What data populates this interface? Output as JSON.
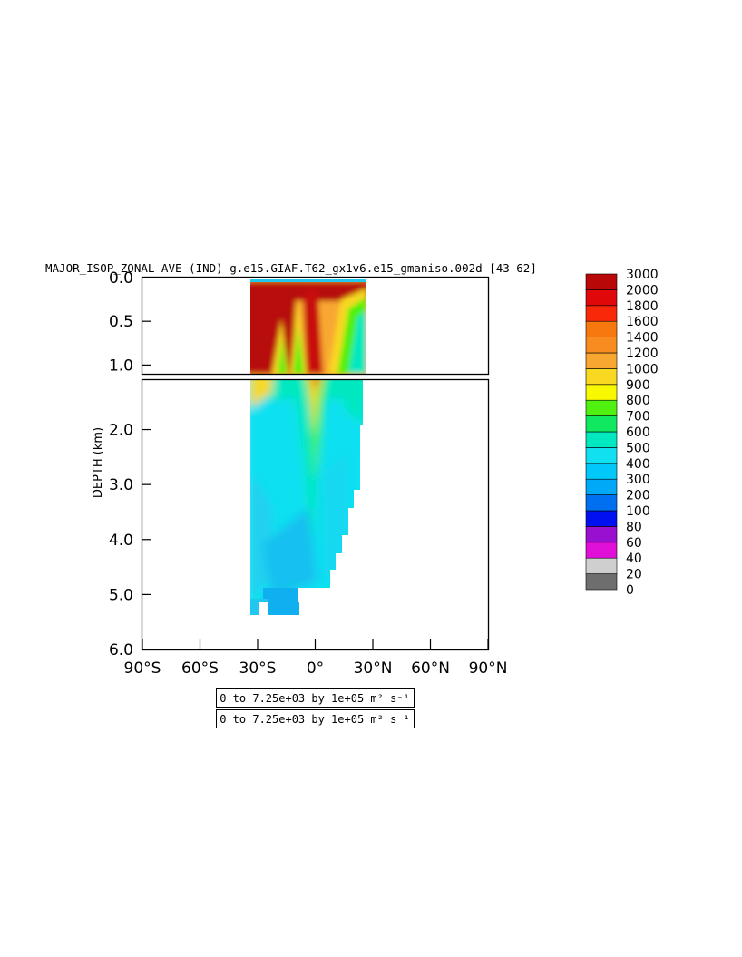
{
  "chart_data": {
    "type": "heatmap",
    "title": "MAJOR_ISOP_ZONAL-AVE (IND) g.e15.GIAF.T62_gx1v6.e15_gmaniso.002d [43-62]",
    "ylabel": "DEPTH (km)",
    "xlabel": "",
    "x_ticks": [
      "90°S",
      "60°S",
      "30°S",
      "0°",
      "30°N",
      "60°N",
      "90°N"
    ],
    "x_tick_values": [
      -90,
      -60,
      -30,
      0,
      30,
      60,
      90
    ],
    "xlim": [
      -90,
      90
    ],
    "upper_panel": {
      "ylim": [
        0.0,
        1.1
      ],
      "y_ticks": [
        "0.0",
        "0.5",
        "1.0"
      ],
      "y_tick_values": [
        0.0,
        0.5,
        1.0
      ]
    },
    "lower_panel": {
      "ylim": [
        1.1,
        6.0
      ],
      "y_ticks": [
        "2.0",
        "3.0",
        "4.0",
        "5.0",
        "6.0"
      ],
      "y_tick_values": [
        2.0,
        3.0,
        4.0,
        5.0,
        6.0
      ]
    },
    "colorbar": {
      "levels": [
        "0",
        "20",
        "40",
        "60",
        "80",
        "100",
        "200",
        "300",
        "400",
        "500",
        "600",
        "700",
        "800",
        "900",
        "1000",
        "1200",
        "1400",
        "1600",
        "1800",
        "2000",
        "3000"
      ],
      "colors": [
        "#6e6e6e",
        "#cfcfcf",
        "#e010d8",
        "#9a10d0",
        "#0010f0",
        "#0070f0",
        "#00a8f8",
        "#00c8f8",
        "#10e0f0",
        "#00e8c0",
        "#10e860",
        "#50f010",
        "#f8f800",
        "#f8d820",
        "#f8a830",
        "#f88c20",
        "#f87810",
        "#f82808",
        "#e00808",
        "#b80808"
      ]
    },
    "contour_info": [
      "0 to 7.25e+03 by 1e+05 m² s⁻¹",
      "0 to 7.25e+03 by 1e+05 m² s⁻¹"
    ]
  }
}
